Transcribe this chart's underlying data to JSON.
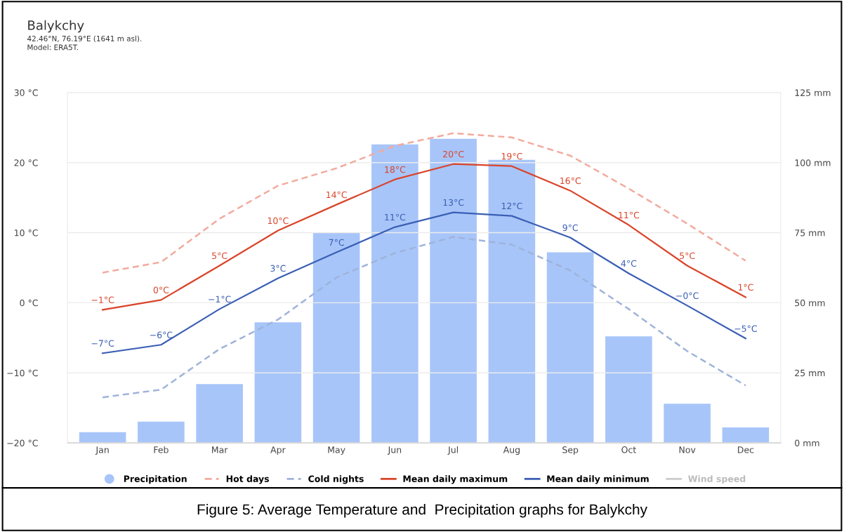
{
  "chart_data": {
    "type": "line",
    "title": "Balykchy",
    "subtitle": "42.46°N, 76.19°E (1641 m asl).\nModel: ERA5T.",
    "annotations": [
      "Figure 5: Average Temperature and  Precipitation graphs for Balykchy"
    ],
    "categories": [
      "Jan",
      "Feb",
      "Mar",
      "Apr",
      "May",
      "Jun",
      "Jul",
      "Aug",
      "Sep",
      "Oct",
      "Nov",
      "Dec"
    ],
    "series": [
      {
        "name": "Precipitation",
        "type": "bar",
        "axis": "y2",
        "color": "#a7c5f9",
        "values": [
          3.8,
          7.6,
          21,
          43,
          75,
          106.5,
          108.5,
          101,
          68,
          38,
          14,
          5.5
        ]
      },
      {
        "name": "Hot days",
        "line_style": "dashed",
        "color": "#f2aa9e",
        "values": [
          4.3,
          5.8,
          12,
          16.7,
          19.2,
          22.4,
          24.2,
          23.6,
          21,
          16.3,
          11.3,
          6
        ]
      },
      {
        "name": "Cold nights",
        "line_style": "dashed",
        "color": "#9fb3da",
        "values": [
          -13.5,
          -12.4,
          -6.6,
          -2.4,
          3.6,
          7.1,
          9.4,
          8.3,
          4.6,
          -0.9,
          -6.9,
          -11.8
        ]
      },
      {
        "name": "Mean daily maximum",
        "line_style": "solid",
        "color": "#d9452b",
        "values": [
          -1,
          0.4,
          5.3,
          10.3,
          14,
          17.6,
          19.8,
          19.5,
          16,
          11.1,
          5.3,
          0.8
        ],
        "value_labels": [
          "−1°C",
          "0°C",
          "5°C",
          "10°C",
          "14°C",
          "18°C",
          "20°C",
          "19°C",
          "16°C",
          "11°C",
          "5°C",
          "1°C"
        ]
      },
      {
        "name": "Mean daily minimum",
        "line_style": "solid",
        "color": "#3b5fb4",
        "values": [
          -7.2,
          -6,
          -0.9,
          3.5,
          7.2,
          10.8,
          12.9,
          12.4,
          9.3,
          4.2,
          -0.4,
          -5.1
        ],
        "value_labels": [
          "−7°C",
          "−6°C",
          "−1°C",
          "3°C",
          "7°C",
          "11°C",
          "13°C",
          "12°C",
          "9°C",
          "4°C",
          "−0°C",
          "−5°C"
        ]
      },
      {
        "name": "Wind speed",
        "line_style": "solid",
        "color": "#cccccc",
        "values": [
          null,
          null,
          null,
          null,
          null,
          null,
          null,
          null,
          null,
          null,
          null,
          null
        ]
      }
    ],
    "ylim": [
      -20,
      30
    ],
    "yticks": [
      {
        "value": -20,
        "label": "−20 °C"
      },
      {
        "value": -10,
        "label": "−10 °C"
      },
      {
        "value": 0,
        "label": "0 °C"
      },
      {
        "value": 10,
        "label": "10 °C"
      },
      {
        "value": 20,
        "label": "20 °C"
      },
      {
        "value": 30,
        "label": "30 °C"
      }
    ],
    "y2lim": [
      0,
      125
    ],
    "y2ticks": [
      {
        "value": 0,
        "label": "0 mm"
      },
      {
        "value": 25,
        "label": "25 mm"
      },
      {
        "value": 50,
        "label": "50 mm"
      },
      {
        "value": 75,
        "label": "75 mm"
      },
      {
        "value": 100,
        "label": "100 mm"
      },
      {
        "value": 125,
        "label": "125 mm"
      }
    ],
    "grid": "y",
    "legend": "bottom"
  }
}
